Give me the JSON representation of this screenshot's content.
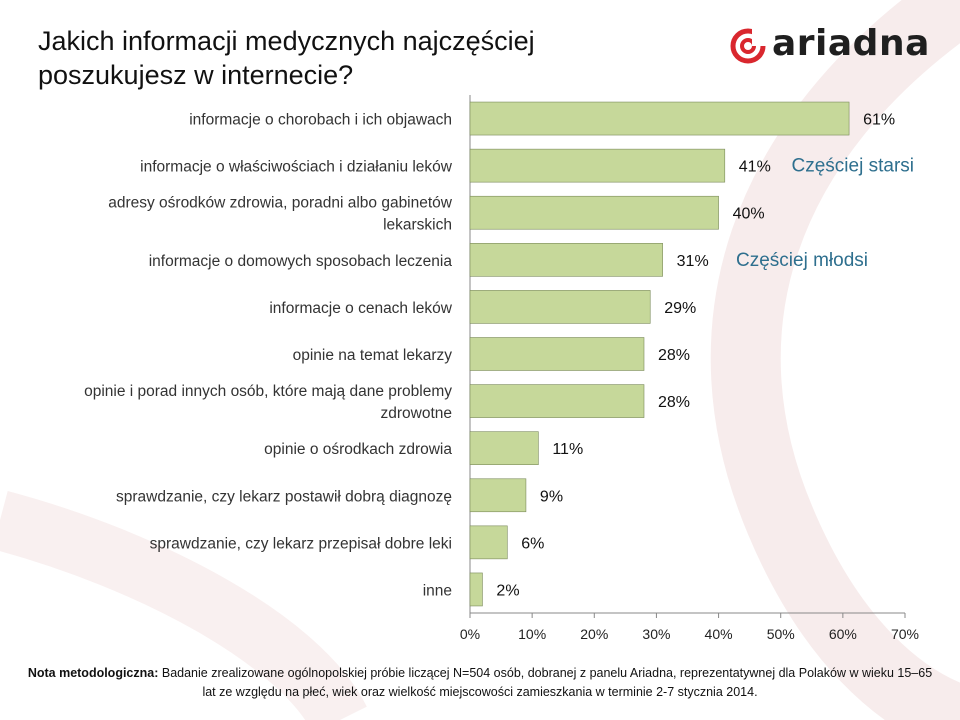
{
  "title": "Jakich informacji medycznych najczęściej poszukujesz w internecie?",
  "logo_text": "ariadna",
  "colors": {
    "bar_fill": "#c6d89a",
    "bar_stroke": "#7a8a5a",
    "annotation": "#2e6f8e",
    "logo_red": "#d9272e",
    "axis": "#888888"
  },
  "annotations": {
    "older": "Częściej starsi",
    "younger": "Częściej młodsi"
  },
  "note": {
    "label": "Nota metodologiczna:",
    "text": " Badanie zrealizowane ogólnopolskiej próbie liczącej N=504 osób, dobranej z panelu Ariadna, reprezentatywnej dla Polaków w wieku 15–65 lat ze względu na płeć, wiek oraz wielkość miejscowości zamieszkania w terminie 2-7 stycznia 2014."
  },
  "chart_data": {
    "type": "bar",
    "orientation": "horizontal",
    "categories": [
      [
        "informacje o chorobach i ich objawach"
      ],
      [
        "informacje o właściwościach i działaniu leków"
      ],
      [
        "adresy ośrodków zdrowia, poradni albo gabinetów",
        "lekarskich"
      ],
      [
        "informacje o domowych sposobach leczenia"
      ],
      [
        "informacje o cenach leków"
      ],
      [
        "opinie na temat lekarzy"
      ],
      [
        "opinie i porad innych osób, które mają dane problemy",
        "zdrowotne"
      ],
      [
        "opinie o ośrodkach zdrowia"
      ],
      [
        "sprawdzanie, czy lekarz postawił dobrą diagnozę"
      ],
      [
        "sprawdzanie, czy lekarz przepisał dobre leki"
      ],
      [
        "inne"
      ]
    ],
    "values": [
      61,
      41,
      40,
      31,
      29,
      28,
      28,
      11,
      9,
      6,
      2
    ],
    "data_labels": [
      "61%",
      "41%",
      "40%",
      "31%",
      "29%",
      "28%",
      "28%",
      "11%",
      "9%",
      "6%",
      "2%"
    ],
    "xlim": [
      0,
      70
    ],
    "xticks": [
      "0%",
      "10%",
      "20%",
      "30%",
      "40%",
      "50%",
      "60%",
      "70%"
    ],
    "grid": false,
    "legend": "none"
  }
}
